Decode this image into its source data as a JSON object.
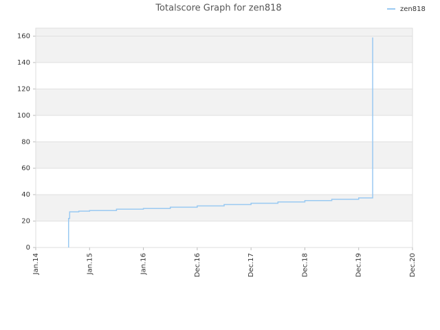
{
  "chart_data": {
    "type": "line",
    "title": "Totalscore Graph for zen818",
    "x": [
      2014.61,
      2014.61,
      2014.63,
      2014.8,
      2015.0,
      2015.5,
      2016.0,
      2016.5,
      2017.0,
      2017.5,
      2018.0,
      2018.5,
      2019.0,
      2019.5,
      2020.0,
      2020.26,
      2020.26
    ],
    "series": [
      {
        "name": "zen818",
        "color": "#99c9f2",
        "values": [
          0,
          22,
          27,
          27.5,
          28,
          29,
          29.5,
          30.5,
          31.5,
          32.5,
          33.5,
          34.5,
          35.5,
          36.5,
          37.5,
          38,
          159
        ]
      }
    ],
    "xlim": [
      2014,
      2021
    ],
    "xticks": [
      {
        "value": 2014,
        "label": "Jan.14"
      },
      {
        "value": 2015,
        "label": "Jan.15"
      },
      {
        "value": 2016,
        "label": "Jan.16"
      },
      {
        "value": 2017,
        "label": "Dec.16"
      },
      {
        "value": 2018,
        "label": "Dec.17"
      },
      {
        "value": 2019,
        "label": "Dec.18"
      },
      {
        "value": 2020,
        "label": "Dec.19"
      },
      {
        "value": 2021,
        "label": "Dec.20"
      }
    ],
    "ylim": [
      0,
      166
    ],
    "yticks": [
      0,
      20,
      40,
      60,
      80,
      100,
      120,
      140,
      160
    ],
    "grid": true,
    "legend": "top-right",
    "step": true
  }
}
